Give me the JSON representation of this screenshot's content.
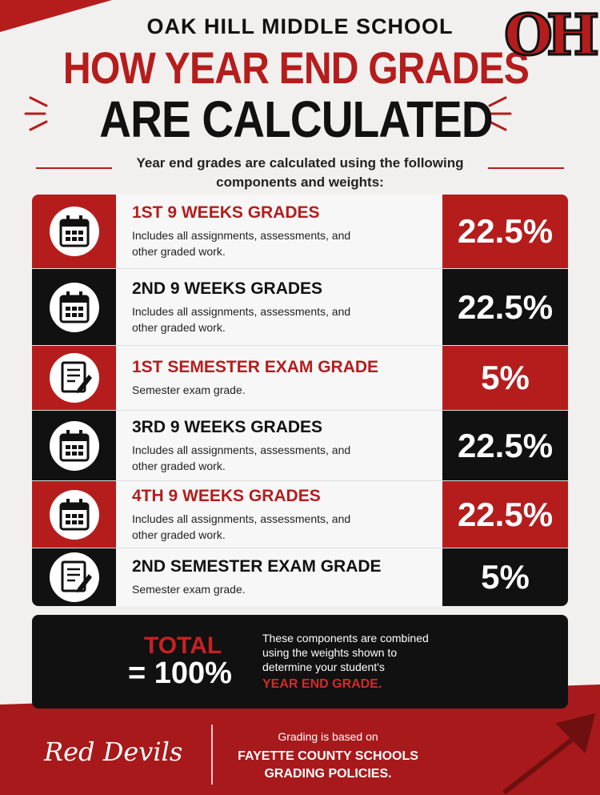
{
  "header": {
    "school": "OAK HILL MIDDLE SCHOOL",
    "title_line1": "HOW YEAR END GRADES",
    "title_line2": "ARE CALCULATED",
    "logo": "OH"
  },
  "intro": "Year end grades are calculated using the following components and weights:",
  "components": [
    {
      "title": "1ST 9 WEEKS GRADES",
      "description": "Includes all assignments, assessments, and other graded work.",
      "weight": "22.5%"
    },
    {
      "title": "2ND 9 WEEKS GRADES",
      "description": "Includes all assignments, assessments, and other graded work.",
      "weight": "22.5%"
    },
    {
      "title": "1ST SEMESTER EXAM GRADE",
      "description": "Semester exam grade.",
      "weight": "5%"
    },
    {
      "title": "3RD 9 WEEKS GRADES",
      "description": "Includes all assignments, assessments, and other graded work.",
      "weight": "22.5%"
    },
    {
      "title": "4TH 9 WEEKS GRADES",
      "description": "Includes all assignments, assessments, and other graded work.",
      "weight": "22.5%"
    },
    {
      "title": "2ND SEMESTER EXAM GRADE",
      "description": "Semester exam grade.",
      "weight": "5%"
    }
  ],
  "total": {
    "label": "TOTAL",
    "value": "= 100%",
    "text": "These components are combined using the weights shown to determine your student's",
    "emphasis": "YEAR END GRADE."
  },
  "footer": {
    "mascot": "Red Devils",
    "note": "Grading is based on",
    "policy": "FAYETTE COUNTY SCHOOLS GRADING POLICIES."
  }
}
